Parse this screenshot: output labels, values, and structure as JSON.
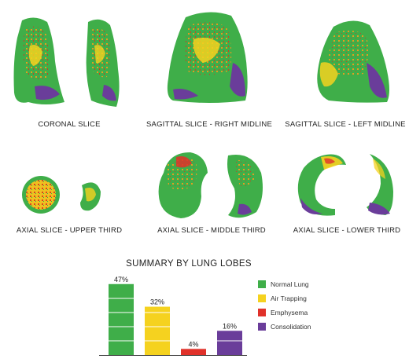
{
  "slices": [
    {
      "name": "coronal",
      "caption": "CORONAL SLICE"
    },
    {
      "name": "sagittal-right",
      "caption": "SAGITTAL SLICE - RIGHT MIDLINE"
    },
    {
      "name": "sagittal-left",
      "caption": "SAGITTAL SLICE - LEFT MIDLINE"
    },
    {
      "name": "axial-upper",
      "caption": "AXIAL SLICE - UPPER THIRD"
    },
    {
      "name": "axial-middle",
      "caption": "AXIAL SLICE - MIDDLE THIRD"
    },
    {
      "name": "axial-lower",
      "caption": "AXIAL SLICE - LOWER THIRD"
    }
  ],
  "colors": {
    "normal": "#3fae49",
    "air_trapping": "#f5d21f",
    "emphysema": "#e0312a",
    "consolidation": "#6a3d9a"
  },
  "summary": {
    "title": "SUMMARY BY LUNG LOBES"
  },
  "chart_data": {
    "type": "bar",
    "title": "SUMMARY BY LUNG LOBES",
    "categories": [
      "Normal Lung",
      "Air Trapping",
      "Emphysema",
      "Consolidation"
    ],
    "values": [
      47,
      32,
      4,
      16
    ],
    "value_labels": [
      "47%",
      "32%",
      "4%",
      "16%"
    ],
    "colors": [
      "#3fae49",
      "#f5d21f",
      "#e0312a",
      "#6a3d9a"
    ],
    "ylim": [
      0,
      50
    ],
    "legend_position": "right",
    "grid": false
  }
}
